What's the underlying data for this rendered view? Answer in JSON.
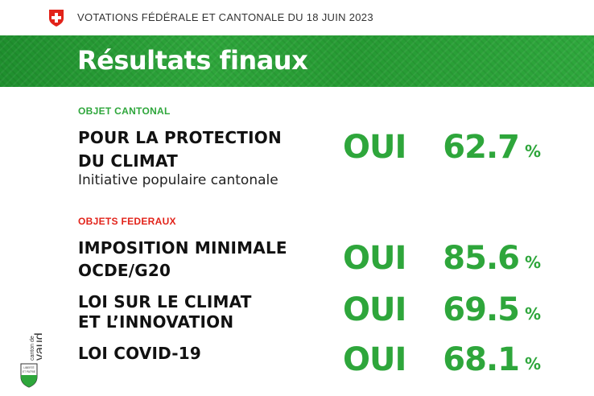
{
  "header": {
    "title": "VOTATIONS FÉDÉRALE ET CANTONALE DU 18 JUIN 2023",
    "flag_icon": "swiss-flag-icon"
  },
  "banner": {
    "title": "Résultats finaux",
    "color": "#2ea63b"
  },
  "cantonal": {
    "label": "OBJET CANTONAL",
    "label_color": "#2ea63b",
    "item": {
      "title_line1": "POUR LA PROTECTION",
      "title_line2": "DU CLIMAT",
      "subtitle": "Initiative populaire cantonale",
      "answer": "OUI",
      "percent": "62.7",
      "percent_sign": "%"
    }
  },
  "federal": {
    "label": "OBJETS FEDERAUX",
    "label_color": "#e2231a",
    "items": [
      {
        "title_line1": "IMPOSITION MINIMALE",
        "title_line2": "OCDE/G20",
        "answer": "OUI",
        "percent": "85.6",
        "percent_sign": "%"
      },
      {
        "title_line1": "LOI SUR LE CLIMAT",
        "title_line2": "ET L’INNOVATION",
        "answer": "OUI",
        "percent": "69.5",
        "percent_sign": "%"
      },
      {
        "title_line1": "LOI COVID-19",
        "title_line2": "",
        "answer": "OUI",
        "percent": "68.1",
        "percent_sign": "%"
      }
    ]
  },
  "logo": {
    "text_line1": "canton de",
    "text_line2": "vaud",
    "shield_text1": "LIBERTÉ",
    "shield_text2": "ET PATRIE"
  }
}
